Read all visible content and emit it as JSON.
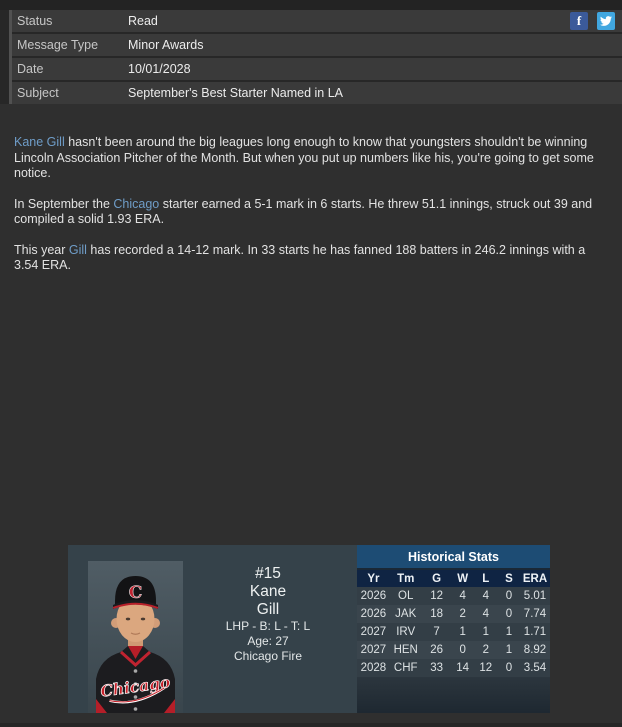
{
  "meta": {
    "rows": [
      {
        "label": "Status",
        "value": "Read"
      },
      {
        "label": "Message Type",
        "value": "Minor Awards"
      },
      {
        "label": "Date",
        "value": "10/01/2028"
      },
      {
        "label": "Subject",
        "value": "September's Best Starter Named in LA"
      }
    ],
    "social": {
      "facebook_glyph": "f",
      "facebook_color": "#3b5a9a",
      "twitter_color": "#41a7e0"
    }
  },
  "message": {
    "paragraphs": [
      {
        "segments": [
          {
            "text": "Kane Gill",
            "link": true
          },
          {
            "text": " hasn't been around the big leagues long enough to know that youngsters shouldn't be winning Lincoln Association Pitcher of the Month. But when you put up numbers like his, you're going to get some notice.",
            "link": false
          }
        ]
      },
      {
        "segments": [
          {
            "text": "In September the ",
            "link": false
          },
          {
            "text": "Chicago",
            "link": true
          },
          {
            "text": " starter earned a 5-1 mark in 6 starts. He threw 51.1 innings, struck out 39 and compiled a solid 1.93 ERA.",
            "link": false
          }
        ]
      },
      {
        "segments": [
          {
            "text": "This year ",
            "link": false
          },
          {
            "text": "Gill",
            "link": true
          },
          {
            "text": " has recorded a 14-12 mark. In 33 starts he has fanned 188 batters in 246.2 innings with a 3.54 ERA.",
            "link": false
          }
        ]
      }
    ],
    "link_color": "#6f9dc8"
  },
  "player_card": {
    "number": "#15",
    "first_name": "Kane",
    "last_name": "Gill",
    "position_line": "LHP - B: L - T: L",
    "age_line": "Age: 27",
    "team_line": "Chicago Fire",
    "photo": {
      "cap_letter": "C",
      "jersey_script": "Chicago",
      "team_red": "#bf2029"
    },
    "historical_stats": {
      "title": "Historical Stats",
      "title_bar_color": "#1d4c74",
      "header_color": "#0f2443",
      "columns": [
        "Yr",
        "Tm",
        "G",
        "W",
        "L",
        "S",
        "ERA"
      ],
      "rows": [
        [
          "2026",
          "OL",
          "12",
          "4",
          "4",
          "0",
          "5.01"
        ],
        [
          "2026",
          "JAK",
          "18",
          "2",
          "4",
          "0",
          "7.74"
        ],
        [
          "2027",
          "IRV",
          "7",
          "1",
          "1",
          "1",
          "1.71"
        ],
        [
          "2027",
          "HEN",
          "26",
          "0",
          "2",
          "1",
          "8.92"
        ],
        [
          "2028",
          "CHF",
          "33",
          "14",
          "12",
          "0",
          "3.54"
        ]
      ]
    }
  }
}
